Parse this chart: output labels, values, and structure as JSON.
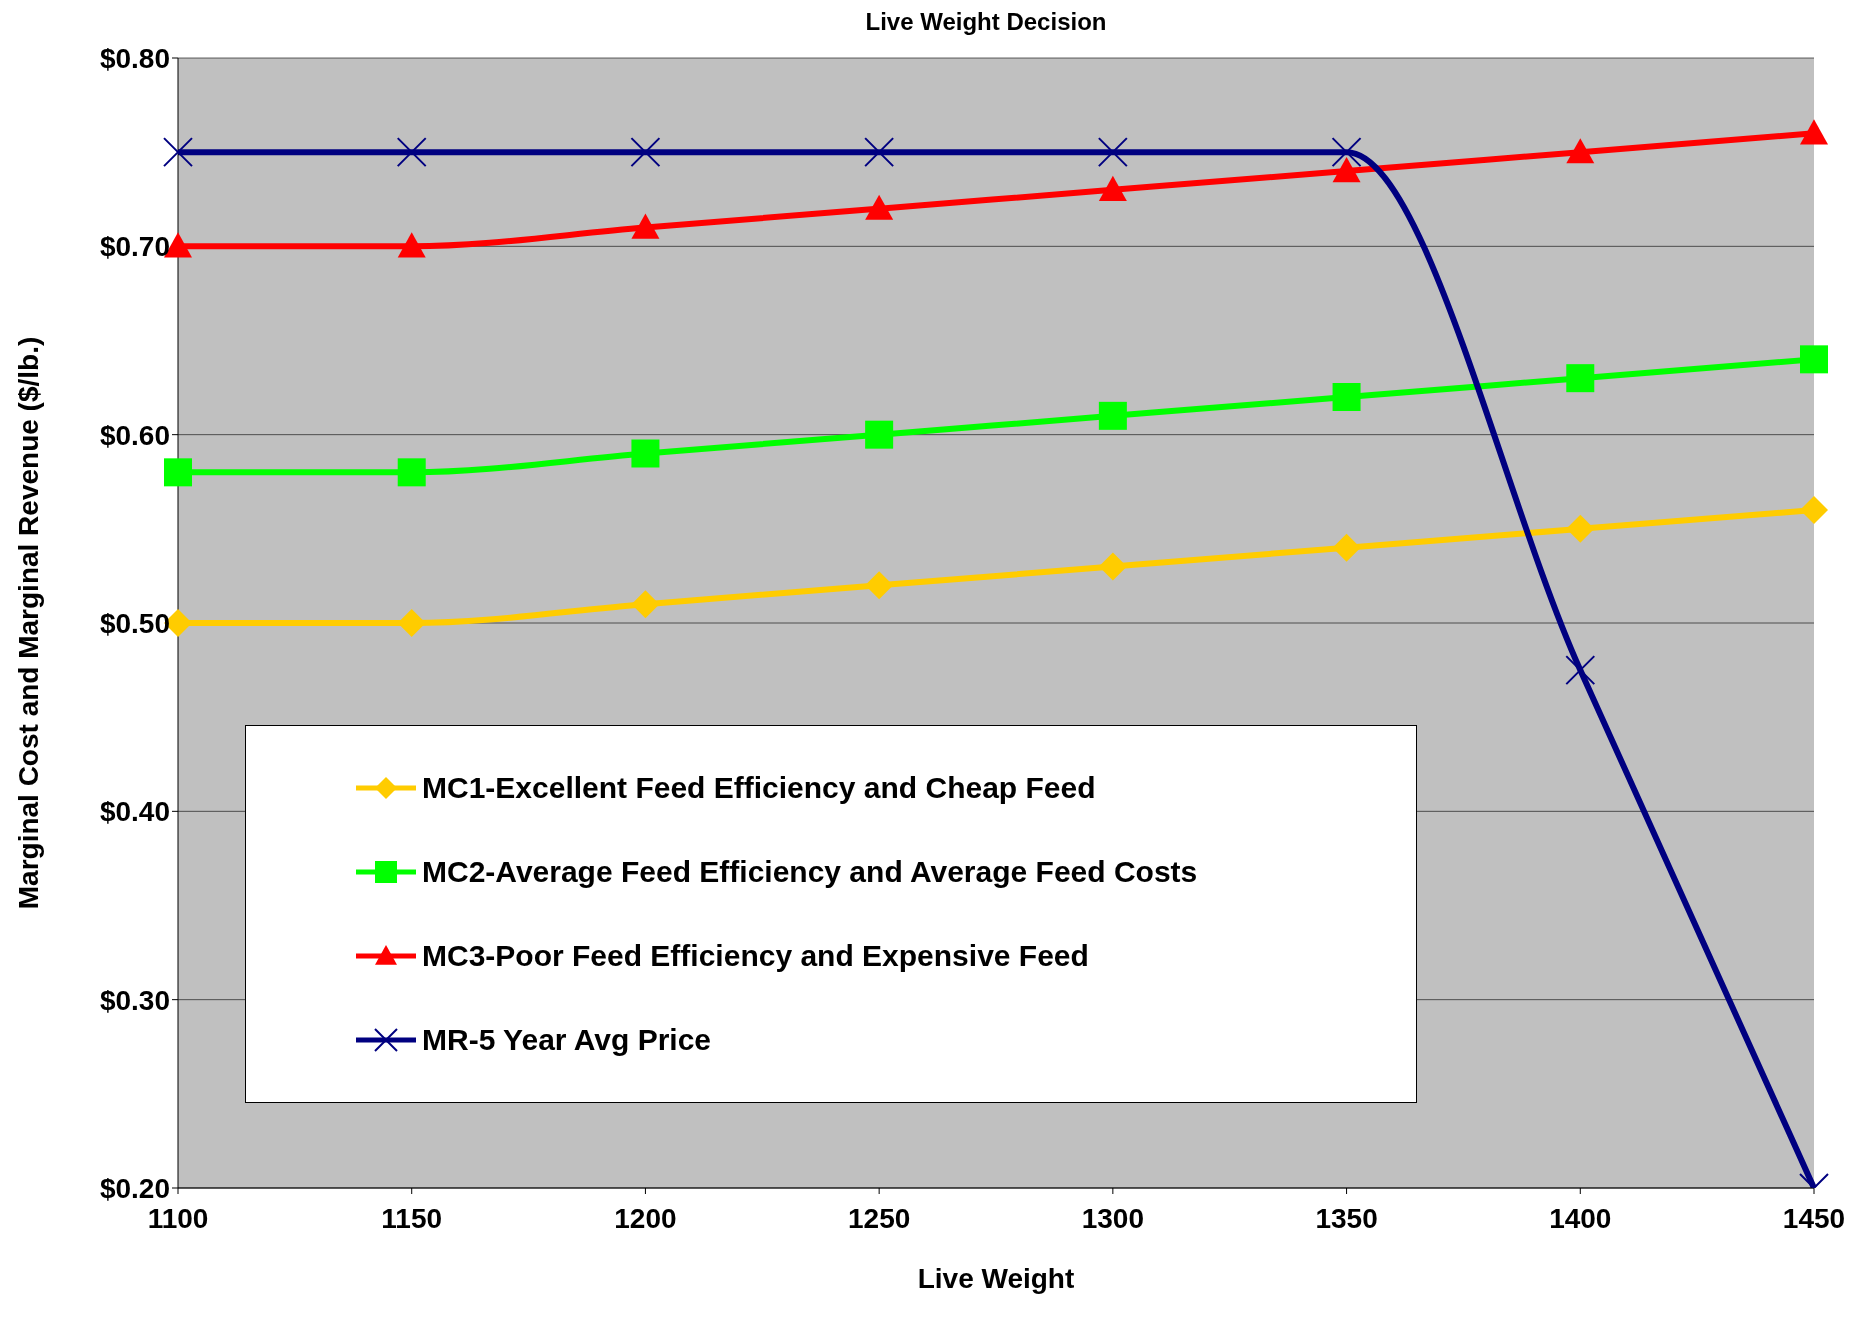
{
  "chart_data": {
    "type": "line",
    "title": "Live Weight Decision",
    "xlabel": "Live Weight",
    "ylabel": "Marginal Cost and Marginal Revenue ($/lb.)",
    "categories": [
      "1100",
      "1150",
      "1200",
      "1250",
      "1300",
      "1350",
      "1400",
      "1450"
    ],
    "series": [
      {
        "name": "MC1-Excellent Feed Efficiency and Cheap Feed",
        "color": "#ffcc00",
        "marker": "diamond",
        "values": [
          0.5,
          0.5,
          0.51,
          0.52,
          0.53,
          0.54,
          0.55,
          0.56
        ]
      },
      {
        "name": "MC2-Average Feed Efficiency and Average Feed Costs",
        "color": "#00ff00",
        "marker": "square",
        "values": [
          0.58,
          0.58,
          0.59,
          0.6,
          0.61,
          0.62,
          0.63,
          0.64
        ]
      },
      {
        "name": "MC3-Poor Feed Efficiency and Expensive Feed",
        "color": "#ff0000",
        "marker": "triangle",
        "values": [
          0.7,
          0.7,
          0.71,
          0.72,
          0.73,
          0.74,
          0.75,
          0.76
        ]
      },
      {
        "name": "MR-5 Year Avg Price",
        "color": "#000080",
        "marker": "cross",
        "values": [
          0.75,
          0.75,
          0.75,
          0.75,
          0.75,
          0.75,
          0.475,
          0.2
        ]
      }
    ],
    "ylim": [
      0.2,
      0.8
    ],
    "yticks": [
      {
        "value": 0.2,
        "label": "$0.20"
      },
      {
        "value": 0.3,
        "label": "$0.30"
      },
      {
        "value": 0.4,
        "label": "$0.40"
      },
      {
        "value": 0.5,
        "label": "$0.50"
      },
      {
        "value": 0.6,
        "label": "$0.60"
      },
      {
        "value": 0.7,
        "label": "$0.70"
      },
      {
        "value": 0.8,
        "label": "$0.80"
      }
    ],
    "grid": "y",
    "legend": "bottom left"
  }
}
